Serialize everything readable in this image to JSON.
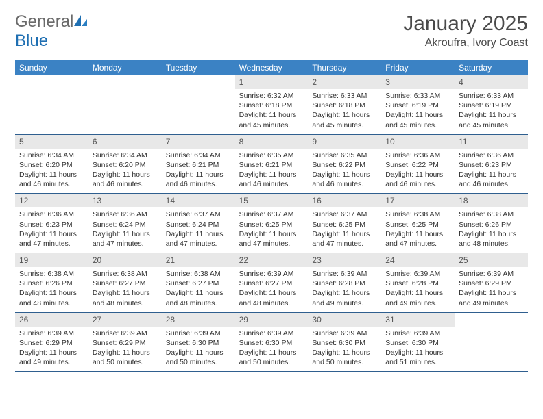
{
  "logo": {
    "word1": "General",
    "word2": "Blue"
  },
  "title": "January 2025",
  "location": "Akroufra, Ivory Coast",
  "colors": {
    "header_bg": "#3b82c4",
    "header_text": "#ffffff",
    "daynum_bg": "#e8e8e8",
    "rule": "#2f5f8f",
    "logo_gray": "#6a6a6a",
    "logo_blue": "#1f6fb2"
  },
  "dow": [
    "Sunday",
    "Monday",
    "Tuesday",
    "Wednesday",
    "Thursday",
    "Friday",
    "Saturday"
  ],
  "weeks": [
    [
      null,
      null,
      null,
      {
        "n": "1",
        "sr": "6:32 AM",
        "ss": "6:18 PM",
        "dl": "11 hours and 45 minutes."
      },
      {
        "n": "2",
        "sr": "6:33 AM",
        "ss": "6:18 PM",
        "dl": "11 hours and 45 minutes."
      },
      {
        "n": "3",
        "sr": "6:33 AM",
        "ss": "6:19 PM",
        "dl": "11 hours and 45 minutes."
      },
      {
        "n": "4",
        "sr": "6:33 AM",
        "ss": "6:19 PM",
        "dl": "11 hours and 45 minutes."
      }
    ],
    [
      {
        "n": "5",
        "sr": "6:34 AM",
        "ss": "6:20 PM",
        "dl": "11 hours and 46 minutes."
      },
      {
        "n": "6",
        "sr": "6:34 AM",
        "ss": "6:20 PM",
        "dl": "11 hours and 46 minutes."
      },
      {
        "n": "7",
        "sr": "6:34 AM",
        "ss": "6:21 PM",
        "dl": "11 hours and 46 minutes."
      },
      {
        "n": "8",
        "sr": "6:35 AM",
        "ss": "6:21 PM",
        "dl": "11 hours and 46 minutes."
      },
      {
        "n": "9",
        "sr": "6:35 AM",
        "ss": "6:22 PM",
        "dl": "11 hours and 46 minutes."
      },
      {
        "n": "10",
        "sr": "6:36 AM",
        "ss": "6:22 PM",
        "dl": "11 hours and 46 minutes."
      },
      {
        "n": "11",
        "sr": "6:36 AM",
        "ss": "6:23 PM",
        "dl": "11 hours and 46 minutes."
      }
    ],
    [
      {
        "n": "12",
        "sr": "6:36 AM",
        "ss": "6:23 PM",
        "dl": "11 hours and 47 minutes."
      },
      {
        "n": "13",
        "sr": "6:36 AM",
        "ss": "6:24 PM",
        "dl": "11 hours and 47 minutes."
      },
      {
        "n": "14",
        "sr": "6:37 AM",
        "ss": "6:24 PM",
        "dl": "11 hours and 47 minutes."
      },
      {
        "n": "15",
        "sr": "6:37 AM",
        "ss": "6:25 PM",
        "dl": "11 hours and 47 minutes."
      },
      {
        "n": "16",
        "sr": "6:37 AM",
        "ss": "6:25 PM",
        "dl": "11 hours and 47 minutes."
      },
      {
        "n": "17",
        "sr": "6:38 AM",
        "ss": "6:25 PM",
        "dl": "11 hours and 47 minutes."
      },
      {
        "n": "18",
        "sr": "6:38 AM",
        "ss": "6:26 PM",
        "dl": "11 hours and 48 minutes."
      }
    ],
    [
      {
        "n": "19",
        "sr": "6:38 AM",
        "ss": "6:26 PM",
        "dl": "11 hours and 48 minutes."
      },
      {
        "n": "20",
        "sr": "6:38 AM",
        "ss": "6:27 PM",
        "dl": "11 hours and 48 minutes."
      },
      {
        "n": "21",
        "sr": "6:38 AM",
        "ss": "6:27 PM",
        "dl": "11 hours and 48 minutes."
      },
      {
        "n": "22",
        "sr": "6:39 AM",
        "ss": "6:27 PM",
        "dl": "11 hours and 48 minutes."
      },
      {
        "n": "23",
        "sr": "6:39 AM",
        "ss": "6:28 PM",
        "dl": "11 hours and 49 minutes."
      },
      {
        "n": "24",
        "sr": "6:39 AM",
        "ss": "6:28 PM",
        "dl": "11 hours and 49 minutes."
      },
      {
        "n": "25",
        "sr": "6:39 AM",
        "ss": "6:29 PM",
        "dl": "11 hours and 49 minutes."
      }
    ],
    [
      {
        "n": "26",
        "sr": "6:39 AM",
        "ss": "6:29 PM",
        "dl": "11 hours and 49 minutes."
      },
      {
        "n": "27",
        "sr": "6:39 AM",
        "ss": "6:29 PM",
        "dl": "11 hours and 50 minutes."
      },
      {
        "n": "28",
        "sr": "6:39 AM",
        "ss": "6:30 PM",
        "dl": "11 hours and 50 minutes."
      },
      {
        "n": "29",
        "sr": "6:39 AM",
        "ss": "6:30 PM",
        "dl": "11 hours and 50 minutes."
      },
      {
        "n": "30",
        "sr": "6:39 AM",
        "ss": "6:30 PM",
        "dl": "11 hours and 50 minutes."
      },
      {
        "n": "31",
        "sr": "6:39 AM",
        "ss": "6:30 PM",
        "dl": "11 hours and 51 minutes."
      },
      null
    ]
  ],
  "labels": {
    "sunrise": "Sunrise:",
    "sunset": "Sunset:",
    "daylight": "Daylight:"
  }
}
